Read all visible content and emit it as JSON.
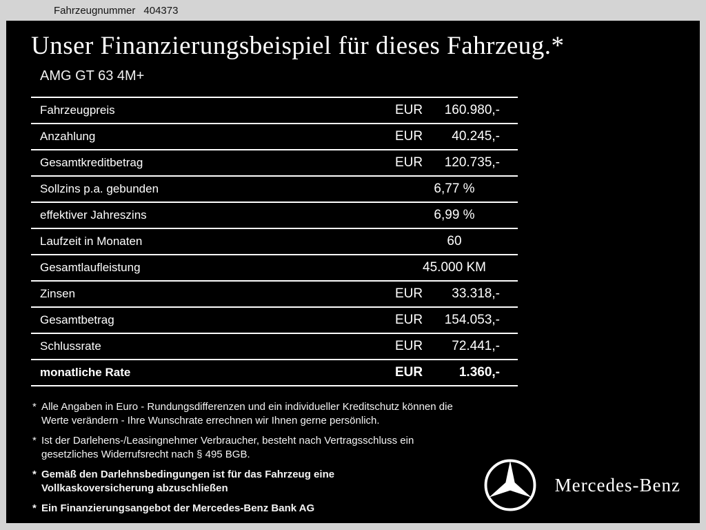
{
  "header": {
    "vehicle_number_label": "Fahrzeugnummer",
    "vehicle_number_value": "404373",
    "title": "Unser Finanzierungsbeispiel für dieses Fahrzeug.*",
    "model": "AMG GT 63 4M+"
  },
  "table": {
    "rows": [
      {
        "label": "Fahrzeugpreis",
        "currency": "EUR",
        "value": "160.980,-",
        "bold": false
      },
      {
        "label": "Anzahlung",
        "currency": "EUR",
        "value": "40.245,-",
        "bold": false
      },
      {
        "label": "Gesamtkreditbetrag",
        "currency": "EUR",
        "value": "120.735,-",
        "bold": false
      },
      {
        "label": "Sollzins p.a. gebunden",
        "currency": null,
        "value": "6,77 %",
        "bold": false
      },
      {
        "label": "effektiver Jahreszins",
        "currency": null,
        "value": "6,99 %",
        "bold": false
      },
      {
        "label": "Laufzeit in Monaten",
        "currency": null,
        "value": "60",
        "bold": false
      },
      {
        "label": "Gesamtlaufleistung",
        "currency": null,
        "value": "45.000 KM",
        "bold": false
      },
      {
        "label": "Zinsen",
        "currency": "EUR",
        "value": "33.318,-",
        "bold": false
      },
      {
        "label": "Gesamtbetrag",
        "currency": "EUR",
        "value": "154.053,-",
        "bold": false
      },
      {
        "label": "Schlussrate",
        "currency": "EUR",
        "value": "72.441,-",
        "bold": false
      },
      {
        "label": "monatliche Rate",
        "currency": "EUR",
        "value": "1.360,-",
        "bold": true
      }
    ]
  },
  "footnotes": [
    {
      "text": "Alle Angaben in Euro - Rundungsdifferenzen und ein individueller Kreditschutz können die\nWerte verändern - Ihre Wunschrate errechnen wir Ihnen gerne persönlich.",
      "bold": false
    },
    {
      "text": "Ist der Darlehens-/Leasingnehmer Verbraucher, besteht nach Vertragsschluss ein\ngesetzliches Widerrufsrecht nach § 495 BGB.",
      "bold": false
    },
    {
      "text": "Gemäß den Darlehnsbedingungen ist für das Fahrzeug eine\nVollkaskoversicherung abzuschließen",
      "bold": true
    },
    {
      "text": "Ein Finanzierungsangebot der Mercedes-Benz Bank AG",
      "bold": true
    }
  ],
  "brand": {
    "name": "Mercedes-Benz"
  },
  "colors": {
    "background": "#000000",
    "frame": "#d4d4d4",
    "text": "#ffffff"
  }
}
